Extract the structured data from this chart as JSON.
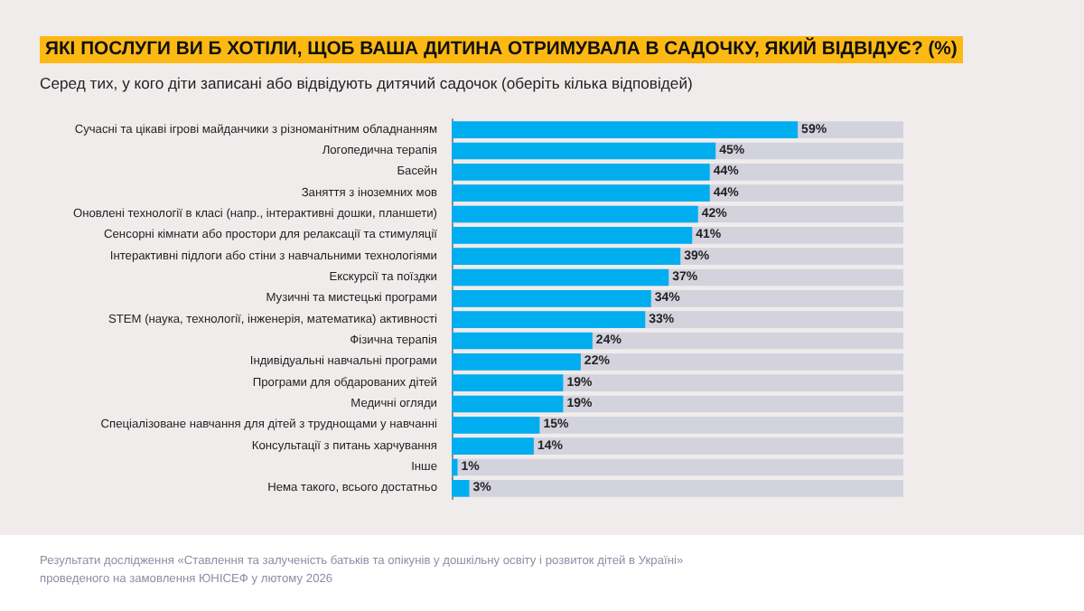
{
  "chart_data": {
    "type": "bar",
    "orientation": "horizontal",
    "title": "ЯКІ ПОСЛУГИ ВИ Б ХОТІЛИ, ЩОБ ВАША ДИТИНА ОТРИМУВАЛА В САДОЧКУ, ЯКИЙ ВІДВІДУЄ? (%)",
    "subtitle": "Серед тих, у кого діти записані або відвідують дитячий садочок (оберіть кілька відповідей)",
    "categories": [
      "Сучасні та цікаві ігрові майданчики з різноманітним обладнанням",
      "Логопедична терапія",
      "Басейн",
      "Заняття з іноземних мов",
      "Оновлені технології в класі (напр., інтерактивні дошки, планшети)",
      "Сенсорні кімнати або простори для релаксації та стимуляції",
      "Інтерактивні підлоги або стіни з навчальними технологіями",
      "Екскурсії та поїздки",
      "Музичні та мистецькі програми",
      "STEM (наука, технології, інженерія, математика) активності",
      "Фізична терапія",
      "Індивідуальні навчальні програми",
      "Програми для обдарованих дітей",
      "Медичні огляди",
      "Спеціалізоване навчання для дітей з труднощами у навчанні",
      "Консультації з питань харчування",
      "Інше",
      "Нема такого, всього достатньо"
    ],
    "values": [
      59,
      45,
      44,
      44,
      42,
      41,
      39,
      37,
      34,
      33,
      24,
      22,
      19,
      19,
      15,
      14,
      1,
      3
    ],
    "color": "#00aeef",
    "value_labels": [
      "59%",
      "45%",
      "44%",
      "44%",
      "42%",
      "41%",
      "39%",
      "37%",
      "34%",
      "33%",
      "24%",
      "22%",
      "19%",
      "19%",
      "15%",
      "14%",
      "1%",
      "3%"
    ],
    "xlim": [
      0,
      77
    ],
    "tick_labels": "y",
    "grid": false,
    "annotations": [
      "Результати дослідження «Ставлення та залученість батьків та опікунів у дошкільну освіту і розвиток дітей в Україні» проведеного на замовлення ЮНІСЕФ у лютому 2026"
    ]
  }
}
